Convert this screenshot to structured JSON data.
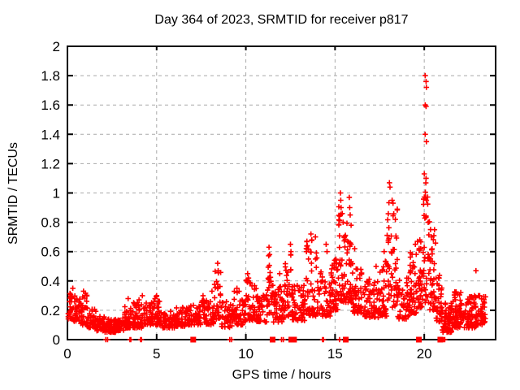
{
  "chart_data": {
    "type": "scatter",
    "title": "Day 364 of 2023, SRMTID for receiver p817",
    "xlabel": "GPS time / hours",
    "ylabel": "SRMTID / TECUs",
    "xlim": [
      0,
      24
    ],
    "ylim": [
      0,
      2
    ],
    "xticks": [
      0,
      5,
      10,
      15,
      20
    ],
    "xtick_labels": [
      "0",
      "5",
      "10",
      "15",
      "20"
    ],
    "yticks": [
      0,
      0.2,
      0.4,
      0.6,
      0.8,
      1,
      1.2,
      1.4,
      1.6,
      1.8,
      2
    ],
    "ytick_labels": [
      "0",
      "0.2",
      "0.4",
      "0.6",
      "0.8",
      "1",
      "1.2",
      "1.4",
      "1.6",
      "1.8",
      "2"
    ],
    "grid": true,
    "grid_style": "dashed",
    "legend_position": "none",
    "marker": "plus",
    "marker_color": "#ff0000",
    "grid_color": "#a9a9a9",
    "border_color": "#000000",
    "background_color": "#ffffff",
    "peak_points": [
      [
        0.3,
        0.35
      ],
      [
        0.9,
        0.33
      ],
      [
        3.4,
        0.28
      ],
      [
        4.2,
        0.3
      ],
      [
        5.0,
        0.3
      ],
      [
        7.6,
        0.3
      ],
      [
        8.1,
        0.33
      ],
      [
        8.42,
        0.52
      ],
      [
        8.45,
        0.47
      ],
      [
        9.5,
        0.35
      ],
      [
        10.1,
        0.45
      ],
      [
        10.15,
        0.42
      ],
      [
        11.3,
        0.63
      ],
      [
        11.33,
        0.58
      ],
      [
        11.9,
        0.45
      ],
      [
        12.5,
        0.65
      ],
      [
        12.53,
        0.6
      ],
      [
        13.4,
        0.6
      ],
      [
        13.65,
        0.72
      ],
      [
        13.7,
        0.68
      ],
      [
        13.9,
        0.7
      ],
      [
        14.5,
        0.65
      ],
      [
        14.55,
        0.6
      ],
      [
        15.3,
        1.0
      ],
      [
        15.32,
        0.95
      ],
      [
        15.34,
        0.9
      ],
      [
        15.4,
        0.86
      ],
      [
        15.45,
        0.8
      ],
      [
        15.8,
        0.97
      ],
      [
        15.82,
        0.9
      ],
      [
        15.85,
        0.85
      ],
      [
        15.9,
        0.78
      ],
      [
        16.1,
        0.62
      ],
      [
        17.3,
        0.5
      ],
      [
        17.75,
        0.6
      ],
      [
        18.05,
        1.07
      ],
      [
        18.08,
        1.04
      ],
      [
        18.2,
        0.95
      ],
      [
        18.25,
        0.93
      ],
      [
        19.5,
        0.65
      ],
      [
        19.75,
        0.68
      ],
      [
        19.8,
        0.62
      ],
      [
        20.05,
        1.8
      ],
      [
        20.1,
        1.76
      ],
      [
        20.12,
        1.72
      ],
      [
        20.05,
        1.6
      ],
      [
        20.1,
        1.59
      ],
      [
        20.05,
        1.4
      ],
      [
        20.12,
        1.35
      ],
      [
        20.0,
        1.13
      ],
      [
        20.1,
        1.1
      ],
      [
        20.08,
        0.97
      ],
      [
        20.12,
        0.95
      ],
      [
        20.35,
        0.75
      ],
      [
        20.4,
        0.7
      ],
      [
        22.9,
        0.47
      ]
    ],
    "zero_plus_x": [
      2.15,
      2.25,
      3.5,
      3.55,
      4.1,
      4.15,
      9.1,
      9.2,
      12.0,
      12.1,
      14.3,
      14.35,
      15.25,
      21.0,
      21.1,
      21.15
    ],
    "gap_squares_x": [
      7.05,
      11.5,
      12.55,
      12.7,
      15.6,
      19.7,
      20.9
    ],
    "baseline_segments": [
      [
        0.0,
        0.3,
        25,
        0.14,
        0.33
      ],
      [
        0.3,
        0.7,
        30,
        0.12,
        0.3
      ],
      [
        0.7,
        1.1,
        30,
        0.1,
        0.32
      ],
      [
        1.1,
        1.6,
        35,
        0.08,
        0.22
      ],
      [
        1.6,
        2.1,
        45,
        0.06,
        0.16
      ],
      [
        2.1,
        2.7,
        55,
        0.05,
        0.14
      ],
      [
        2.7,
        3.2,
        45,
        0.06,
        0.17
      ],
      [
        3.2,
        3.7,
        40,
        0.08,
        0.24
      ],
      [
        3.7,
        4.3,
        45,
        0.08,
        0.28
      ],
      [
        4.3,
        4.9,
        45,
        0.1,
        0.26
      ],
      [
        4.9,
        5.3,
        35,
        0.1,
        0.3
      ],
      [
        5.3,
        6.0,
        50,
        0.08,
        0.2
      ],
      [
        6.0,
        6.7,
        50,
        0.09,
        0.22
      ],
      [
        6.7,
        7.4,
        50,
        0.1,
        0.24
      ],
      [
        7.4,
        8.2,
        60,
        0.1,
        0.27
      ],
      [
        8.2,
        8.6,
        30,
        0.14,
        0.48
      ],
      [
        8.6,
        9.3,
        45,
        0.08,
        0.26
      ],
      [
        9.3,
        10.0,
        50,
        0.1,
        0.33
      ],
      [
        10.0,
        10.6,
        45,
        0.13,
        0.42
      ],
      [
        10.6,
        11.2,
        45,
        0.12,
        0.32
      ],
      [
        11.2,
        11.5,
        25,
        0.18,
        0.58
      ],
      [
        11.5,
        12.2,
        55,
        0.12,
        0.38
      ],
      [
        12.2,
        12.6,
        30,
        0.16,
        0.6
      ],
      [
        12.6,
        13.3,
        55,
        0.13,
        0.38
      ],
      [
        13.3,
        14.0,
        55,
        0.16,
        0.68
      ],
      [
        14.0,
        14.8,
        60,
        0.16,
        0.48
      ],
      [
        14.8,
        15.2,
        40,
        0.2,
        0.55
      ],
      [
        15.2,
        15.5,
        30,
        0.25,
        0.95
      ],
      [
        15.5,
        15.75,
        25,
        0.25,
        0.8
      ],
      [
        15.75,
        16.0,
        25,
        0.25,
        0.92
      ],
      [
        16.0,
        16.5,
        50,
        0.18,
        0.5
      ],
      [
        16.5,
        17.5,
        75,
        0.15,
        0.42
      ],
      [
        17.5,
        17.9,
        35,
        0.16,
        0.55
      ],
      [
        17.9,
        18.2,
        25,
        0.25,
        1.0
      ],
      [
        18.2,
        18.5,
        25,
        0.22,
        0.9
      ],
      [
        18.5,
        19.2,
        55,
        0.14,
        0.42
      ],
      [
        19.2,
        19.6,
        40,
        0.18,
        0.6
      ],
      [
        19.6,
        19.95,
        35,
        0.22,
        0.68
      ],
      [
        19.95,
        20.3,
        35,
        0.25,
        1.1
      ],
      [
        20.3,
        20.65,
        35,
        0.2,
        0.75
      ],
      [
        20.65,
        21.0,
        35,
        0.12,
        0.45
      ],
      [
        21.0,
        21.6,
        65,
        0.05,
        0.25
      ],
      [
        21.6,
        22.3,
        70,
        0.08,
        0.33
      ],
      [
        22.3,
        22.9,
        60,
        0.08,
        0.3
      ],
      [
        22.9,
        23.45,
        45,
        0.1,
        0.3
      ]
    ],
    "seed": 20231364,
    "x_quantum": 0.0333,
    "y_bias_exponent": 1.6
  }
}
